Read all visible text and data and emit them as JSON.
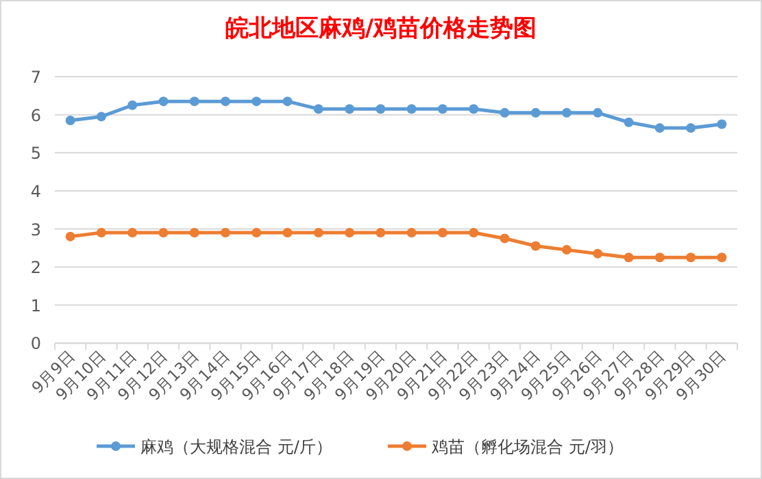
{
  "chart_data": {
    "type": "line",
    "title": "皖北地区麻鸡/鸡苗价格走势图",
    "categories": [
      "9月9日",
      "9月10日",
      "9月11日",
      "9月12日",
      "9月13日",
      "9月14日",
      "9月15日",
      "9月16日",
      "9月17日",
      "9月18日",
      "9月19日",
      "9月20日",
      "9月21日",
      "9月22日",
      "9月23日",
      "9月24日",
      "9月25日",
      "9月26日",
      "9月27日",
      "9月28日",
      "9月29日",
      "9月30日"
    ],
    "series": [
      {
        "name": "麻鸡（大规格混合 元/斤）",
        "color": "#5b9bd5",
        "values": [
          5.85,
          5.95,
          6.25,
          6.35,
          6.35,
          6.35,
          6.35,
          6.35,
          6.15,
          6.15,
          6.15,
          6.15,
          6.15,
          6.15,
          6.05,
          6.05,
          6.05,
          6.05,
          5.8,
          5.65,
          5.65,
          5.75
        ]
      },
      {
        "name": "鸡苗（孵化场混合 元/羽）",
        "color": "#ed7d31",
        "values": [
          2.8,
          2.9,
          2.9,
          2.9,
          2.9,
          2.9,
          2.9,
          2.9,
          2.9,
          2.9,
          2.9,
          2.9,
          2.9,
          2.9,
          2.75,
          2.55,
          2.45,
          2.35,
          2.25,
          2.25,
          2.25,
          2.25
        ]
      }
    ],
    "ylim": [
      0,
      7
    ],
    "yticks": [
      0,
      1,
      2,
      3,
      4,
      5,
      6,
      7
    ],
    "grid": "y",
    "legend": "bottom",
    "marker": "circle",
    "line_style": "solid"
  }
}
